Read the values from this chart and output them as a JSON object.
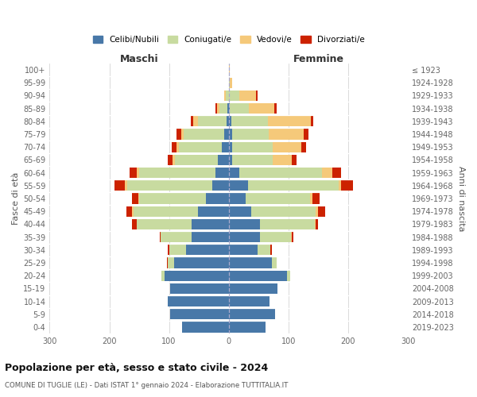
{
  "age_groups": [
    "0-4",
    "5-9",
    "10-14",
    "15-19",
    "20-24",
    "25-29",
    "30-34",
    "35-39",
    "40-44",
    "45-49",
    "50-54",
    "55-59",
    "60-64",
    "65-69",
    "70-74",
    "75-79",
    "80-84",
    "85-89",
    "90-94",
    "95-99",
    "100+"
  ],
  "birth_years": [
    "2019-2023",
    "2014-2018",
    "2009-2013",
    "2004-2008",
    "1999-2003",
    "1994-1998",
    "1989-1993",
    "1984-1988",
    "1979-1983",
    "1974-1978",
    "1969-1973",
    "1964-1968",
    "1959-1963",
    "1954-1958",
    "1949-1953",
    "1944-1948",
    "1939-1943",
    "1934-1938",
    "1929-1933",
    "1924-1928",
    "≤ 1923"
  ],
  "colors": {
    "celibi": "#4878a8",
    "coniugati": "#c8dba0",
    "vedovi": "#f5c97a",
    "divorziati": "#cc2200"
  },
  "maschi": {
    "celibi": [
      78,
      98,
      102,
      98,
      108,
      92,
      72,
      62,
      62,
      52,
      38,
      28,
      22,
      18,
      12,
      8,
      4,
      2,
      0,
      0,
      0
    ],
    "coniugati": [
      0,
      0,
      0,
      0,
      5,
      10,
      28,
      52,
      92,
      108,
      112,
      142,
      128,
      72,
      72,
      68,
      48,
      14,
      5,
      0,
      0
    ],
    "vedovi": [
      0,
      0,
      0,
      0,
      0,
      0,
      0,
      0,
      0,
      2,
      2,
      4,
      4,
      4,
      4,
      4,
      8,
      4,
      2,
      0,
      0
    ],
    "divorziati": [
      0,
      0,
      0,
      0,
      0,
      2,
      2,
      2,
      8,
      10,
      10,
      18,
      12,
      8,
      8,
      8,
      4,
      2,
      0,
      0,
      0
    ]
  },
  "femmine": {
    "celibi": [
      62,
      78,
      68,
      82,
      98,
      72,
      48,
      52,
      52,
      38,
      28,
      32,
      18,
      5,
      5,
      5,
      4,
      2,
      0,
      0,
      0
    ],
    "coniugati": [
      0,
      0,
      0,
      0,
      5,
      8,
      22,
      52,
      92,
      108,
      108,
      152,
      138,
      68,
      68,
      62,
      62,
      32,
      18,
      2,
      0
    ],
    "vedovi": [
      0,
      0,
      0,
      0,
      0,
      0,
      0,
      2,
      2,
      4,
      4,
      4,
      18,
      32,
      48,
      58,
      72,
      42,
      28,
      4,
      2
    ],
    "divorziati": [
      0,
      0,
      0,
      0,
      0,
      0,
      2,
      2,
      4,
      12,
      12,
      20,
      14,
      8,
      8,
      8,
      4,
      4,
      2,
      0,
      0
    ]
  },
  "xlim": 300,
  "title": "Popolazione per età, sesso e stato civile - 2024",
  "subtitle": "COMUNE DI TUGLIE (LE) - Dati ISTAT 1° gennaio 2024 - Elaborazione TUTTITALIA.IT",
  "ylabel_left": "Fasce di età",
  "ylabel_right": "Anni di nascita",
  "xlabel_left": "Maschi",
  "xlabel_right": "Femmine",
  "legend_labels": [
    "Celibi/Nubili",
    "Coniugati/e",
    "Vedovi/e",
    "Divorziati/e"
  ],
  "background_color": "#ffffff",
  "grid_color": "#cccccc"
}
